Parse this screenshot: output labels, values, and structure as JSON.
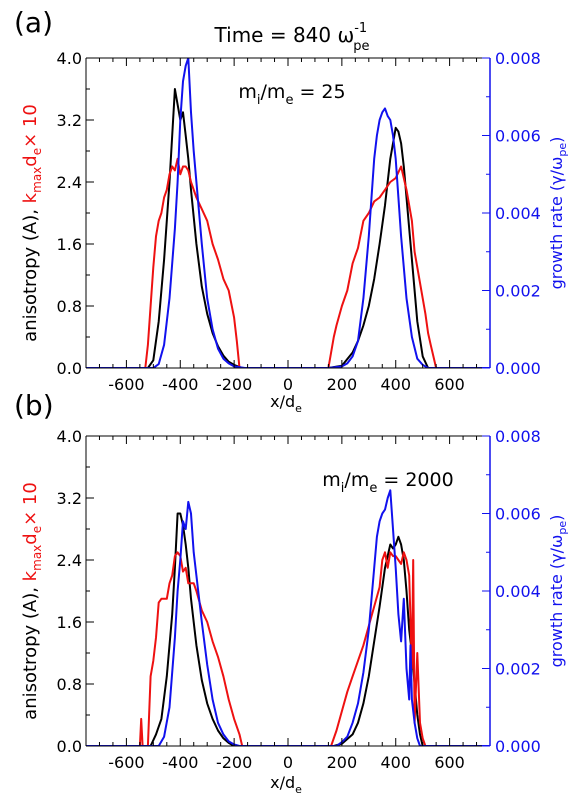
{
  "colors": {
    "black": "#000000",
    "red": "#ee1111",
    "blue": "#1111ee"
  },
  "chart_data": [
    {
      "type": "line",
      "panel_label": "(a)",
      "title": {
        "main": "Time = 840 ω",
        "sub": "pe",
        "sup": "-1"
      },
      "annotation": {
        "main": "m",
        "sub1": "i",
        "mid": "/m",
        "sub2": "e",
        "tail": " = 25"
      },
      "xlabel": {
        "main": "x/d",
        "sub": "e"
      },
      "ylabel_left": {
        "black": "anisotropy (A),",
        "red_k": "k",
        "red_sub": "max",
        "red_d": "d",
        "red_sub2": "e",
        "red_tail": "× 10"
      },
      "ylabel_right": {
        "main": "growth rate (γ/ω",
        "sub": "pe",
        "tail": ")"
      },
      "xlim": [
        -750,
        750
      ],
      "ylim_left": [
        0,
        4.0
      ],
      "ylim_right": [
        0,
        0.008
      ],
      "xticks": [
        -600,
        -400,
        -200,
        0,
        200,
        400,
        600
      ],
      "xticklabels": [
        "-600",
        "-400",
        "-200",
        "0",
        "200",
        "400",
        "600"
      ],
      "yticks_left": [
        0.0,
        0.8,
        1.6,
        2.4,
        3.2,
        4.0
      ],
      "yticklabels_left": [
        "0.0",
        "0.8",
        "1.6",
        "2.4",
        "3.2",
        "4.0"
      ],
      "yticks_right": [
        0,
        0.002,
        0.004,
        0.006,
        0.008
      ],
      "yticklabels_right": [
        "0.000",
        "0.002",
        "0.004",
        "0.006",
        "0.008"
      ],
      "series": [
        {
          "color": "black",
          "axis": "left",
          "x": [
            -760,
            -520,
            -500,
            -480,
            -460,
            -440,
            -430,
            -420,
            -410,
            -400,
            -390,
            -380,
            -370,
            -360,
            -340,
            -320,
            -300,
            -280,
            -260,
            -240,
            -220,
            -200,
            -170,
            0,
            150,
            200,
            240,
            260,
            280,
            300,
            320,
            340,
            360,
            380,
            400,
            410,
            420,
            430,
            440,
            460,
            480,
            500,
            520,
            760
          ],
          "y": [
            0,
            0,
            0.1,
            0.6,
            1.4,
            2.4,
            3.0,
            3.6,
            3.4,
            3.2,
            3.3,
            3.0,
            2.7,
            2.3,
            1.6,
            1.05,
            0.7,
            0.45,
            0.28,
            0.16,
            0.08,
            0.04,
            0,
            0,
            0,
            0.03,
            0.2,
            0.35,
            0.55,
            0.8,
            1.15,
            1.6,
            2.1,
            2.7,
            3.1,
            3.05,
            2.9,
            2.6,
            2.2,
            1.4,
            0.6,
            0.15,
            0,
            0
          ]
        },
        {
          "color": "red",
          "axis": "left",
          "x": [
            -760,
            -530,
            -520,
            -510,
            -500,
            -490,
            -480,
            -470,
            -460,
            -450,
            -440,
            -430,
            -420,
            -410,
            -400,
            -390,
            -380,
            -370,
            -360,
            -340,
            -320,
            -300,
            -280,
            -260,
            -240,
            -220,
            -200,
            -190,
            -180,
            0,
            150,
            160,
            170,
            180,
            200,
            220,
            240,
            260,
            280,
            300,
            320,
            340,
            360,
            380,
            400,
            420,
            440,
            460,
            470,
            480,
            490,
            500,
            510,
            520,
            530,
            540,
            550,
            760
          ],
          "y": [
            0,
            0,
            0.3,
            0.8,
            1.3,
            1.7,
            1.9,
            2.0,
            2.2,
            2.3,
            2.5,
            2.6,
            2.55,
            2.7,
            2.5,
            2.6,
            2.6,
            2.55,
            2.4,
            2.2,
            2.05,
            1.9,
            1.6,
            1.4,
            1.15,
            1.0,
            0.65,
            0.35,
            0,
            0,
            0,
            0.2,
            0.4,
            0.55,
            0.8,
            1.0,
            1.35,
            1.55,
            1.9,
            2.0,
            2.15,
            2.2,
            2.3,
            2.4,
            2.45,
            2.6,
            2.3,
            1.9,
            1.5,
            1.3,
            1.1,
            0.9,
            0.7,
            0.45,
            0.3,
            0.15,
            0,
            0
          ]
        },
        {
          "color": "blue",
          "axis": "left",
          "x": [
            -760,
            -500,
            -480,
            -460,
            -440,
            -420,
            -410,
            -400,
            -390,
            -380,
            -370,
            -360,
            -350,
            -340,
            -320,
            -300,
            -280,
            -260,
            -240,
            -220,
            -200,
            -160,
            0,
            150,
            200,
            220,
            240,
            260,
            280,
            300,
            310,
            320,
            330,
            340,
            350,
            360,
            370,
            380,
            390,
            400,
            410,
            420,
            440,
            460,
            480,
            500,
            520,
            760
          ],
          "y": [
            0,
            0,
            0.05,
            0.3,
            0.9,
            1.8,
            2.4,
            3.2,
            3.7,
            3.9,
            4.0,
            3.3,
            2.8,
            2.4,
            1.6,
            0.9,
            0.5,
            0.25,
            0.12,
            0.06,
            0.02,
            0,
            0,
            0,
            0.02,
            0.06,
            0.15,
            0.35,
            0.9,
            1.7,
            2.2,
            2.7,
            3.0,
            3.2,
            3.3,
            3.35,
            3.25,
            3.2,
            3.0,
            2.7,
            2.2,
            1.7,
            0.9,
            0.4,
            0.12,
            0.04,
            0,
            0
          ]
        }
      ]
    },
    {
      "type": "line",
      "panel_label": "(b)",
      "annotation": {
        "main": "m",
        "sub1": "i",
        "mid": "/m",
        "sub2": "e",
        "tail": " = 2000"
      },
      "xlabel": {
        "main": "x/d",
        "sub": "e"
      },
      "ylabel_left": {
        "black": "anisotropy (A),",
        "red_k": "k",
        "red_sub": "max",
        "red_d": "d",
        "red_sub2": "e",
        "red_tail": "× 10"
      },
      "ylabel_right": {
        "main": "growth rate (γ/ω",
        "sub": "pe",
        "tail": ")"
      },
      "xlim": [
        -750,
        750
      ],
      "ylim_left": [
        0,
        4.0
      ],
      "ylim_right": [
        0,
        0.008
      ],
      "xticks": [
        -600,
        -400,
        -200,
        0,
        200,
        400,
        600
      ],
      "xticklabels": [
        "-600",
        "-400",
        "-200",
        "0",
        "200",
        "400",
        "600"
      ],
      "yticks_left": [
        0.0,
        0.8,
        1.6,
        2.4,
        3.2,
        4.0
      ],
      "yticklabels_left": [
        "0.0",
        "0.8",
        "1.6",
        "2.4",
        "3.2",
        "4.0"
      ],
      "yticks_right": [
        0,
        0.002,
        0.004,
        0.006,
        0.008
      ],
      "yticklabels_right": [
        "0.000",
        "0.002",
        "0.004",
        "0.006",
        "0.008"
      ],
      "series": [
        {
          "color": "black",
          "axis": "left",
          "x": [
            -760,
            -510,
            -490,
            -470,
            -450,
            -430,
            -420,
            -410,
            -400,
            -390,
            -380,
            -370,
            -360,
            -340,
            -320,
            -300,
            -280,
            -260,
            -240,
            -220,
            -200,
            0,
            170,
            200,
            240,
            260,
            280,
            300,
            320,
            340,
            360,
            380,
            390,
            400,
            410,
            420,
            430,
            440,
            450,
            460,
            470,
            480,
            490,
            500,
            760
          ],
          "y": [
            0,
            0,
            0.15,
            0.35,
            0.9,
            1.7,
            2.3,
            3.0,
            3.0,
            2.85,
            2.6,
            2.3,
            1.9,
            1.3,
            0.85,
            0.55,
            0.35,
            0.2,
            0.1,
            0.04,
            0,
            0,
            0,
            0.03,
            0.15,
            0.3,
            0.55,
            0.9,
            1.35,
            1.8,
            2.3,
            2.6,
            2.55,
            2.6,
            2.7,
            2.6,
            2.4,
            2.0,
            1.5,
            1.2,
            0.8,
            0.4,
            0.15,
            0,
            0
          ]
        },
        {
          "color": "red",
          "axis": "left",
          "x": [
            -760,
            -550,
            -545,
            -540,
            -520,
            -510,
            -500,
            -490,
            -480,
            -470,
            -460,
            -450,
            -440,
            -430,
            -420,
            -410,
            -400,
            -390,
            -380,
            -370,
            -360,
            -350,
            -340,
            -320,
            -300,
            -280,
            -260,
            -240,
            -220,
            -200,
            -180,
            -170,
            0,
            160,
            180,
            200,
            220,
            240,
            260,
            280,
            300,
            320,
            340,
            350,
            360,
            370,
            380,
            390,
            400,
            410,
            420,
            430,
            440,
            450,
            460,
            465,
            470,
            480,
            490,
            500,
            510,
            760
          ],
          "y": [
            0,
            0,
            0.35,
            0,
            0,
            0.9,
            1.1,
            1.4,
            1.85,
            1.9,
            1.9,
            1.9,
            2.1,
            2.2,
            2.45,
            2.5,
            2.45,
            2.25,
            2.3,
            2.1,
            2.1,
            2.1,
            2.0,
            1.75,
            1.6,
            1.35,
            1.15,
            0.9,
            0.6,
            0.35,
            0.15,
            0,
            0,
            0,
            0.2,
            0.45,
            0.7,
            0.9,
            1.1,
            1.3,
            1.55,
            1.8,
            2.05,
            2.4,
            2.5,
            2.3,
            2.5,
            2.45,
            2.45,
            2.4,
            2.35,
            2.5,
            2.4,
            2.2,
            1.0,
            2.4,
            0.3,
            1.2,
            0.3,
            0.1,
            0,
            0
          ]
        },
        {
          "color": "blue",
          "axis": "left",
          "x": [
            -760,
            -480,
            -460,
            -440,
            -420,
            -410,
            -400,
            -390,
            -380,
            -370,
            -360,
            -350,
            -340,
            -320,
            -300,
            -280,
            -260,
            -240,
            -220,
            -200,
            -180,
            0,
            180,
            200,
            220,
            240,
            260,
            280,
            300,
            320,
            330,
            340,
            350,
            360,
            370,
            380,
            390,
            400,
            410,
            420,
            430,
            440,
            450,
            455,
            460,
            470,
            480,
            490,
            760
          ],
          "y": [
            0,
            0,
            0.12,
            0.5,
            1.4,
            2.0,
            2.4,
            2.9,
            2.8,
            3.15,
            3.0,
            2.5,
            2.2,
            1.6,
            1.05,
            0.6,
            0.3,
            0.15,
            0.06,
            0.02,
            0,
            0,
            0,
            0.05,
            0.12,
            0.3,
            0.55,
            0.95,
            1.5,
            2.3,
            2.7,
            2.9,
            3.0,
            3.05,
            3.2,
            3.3,
            2.8,
            2.3,
            1.7,
            1.35,
            1.9,
            1.0,
            0.6,
            1.3,
            0.6,
            0.3,
            0.1,
            0,
            0
          ]
        }
      ]
    }
  ]
}
